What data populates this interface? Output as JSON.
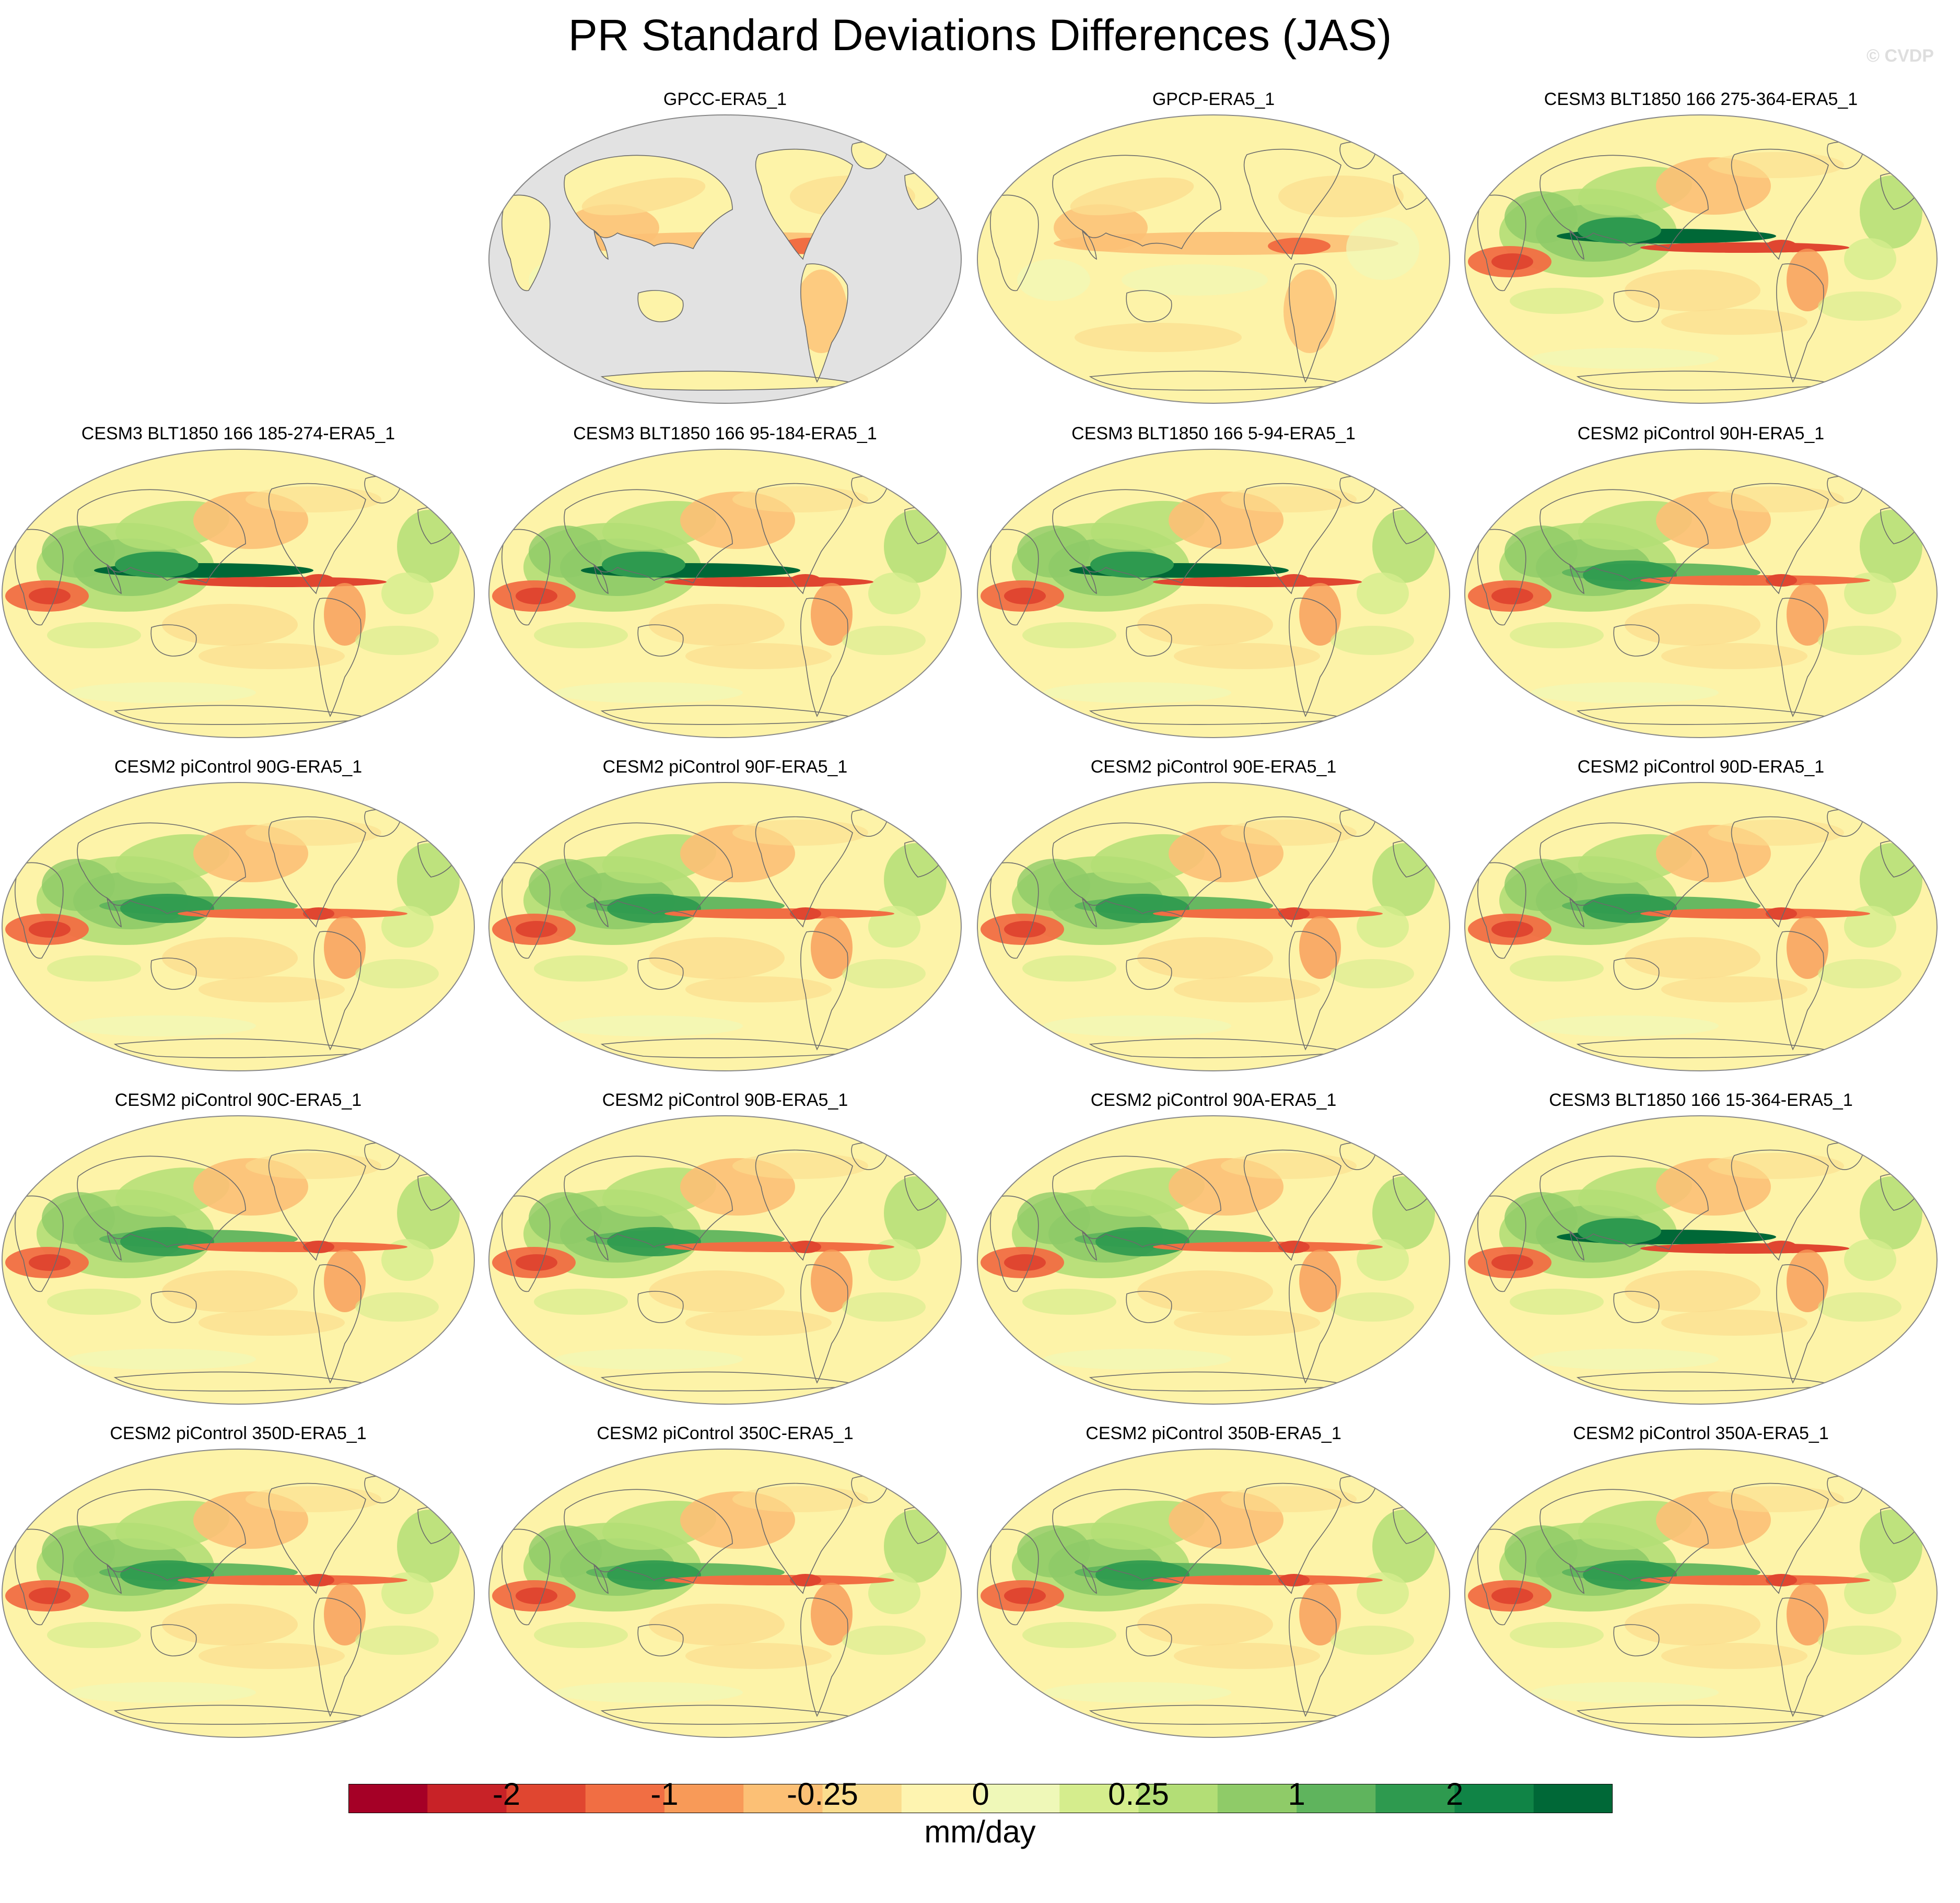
{
  "title": "PR Standard Deviations Differences (JAS)",
  "watermark": "© CVDP",
  "panels": [
    {
      "label": "GPCC-ERA5_1",
      "type": "obs-land"
    },
    {
      "label": "GPCP-ERA5_1",
      "type": "obs"
    },
    {
      "label": "CESM3 BLT1850 166 275-364-ERA5_1",
      "type": "cesm3"
    },
    {
      "label": "CESM3 BLT1850 166 185-274-ERA5_1",
      "type": "cesm3"
    },
    {
      "label": "CESM3 BLT1850 166 95-184-ERA5_1",
      "type": "cesm3"
    },
    {
      "label": "CESM3 BLT1850 166 5-94-ERA5_1",
      "type": "cesm3"
    },
    {
      "label": "CESM2 piControl 90H-ERA5_1",
      "type": "cesm2"
    },
    {
      "label": "CESM2 piControl 90G-ERA5_1",
      "type": "cesm2"
    },
    {
      "label": "CESM2 piControl 90F-ERA5_1",
      "type": "cesm2"
    },
    {
      "label": "CESM2 piControl 90E-ERA5_1",
      "type": "cesm2"
    },
    {
      "label": "CESM2 piControl 90D-ERA5_1",
      "type": "cesm2"
    },
    {
      "label": "CESM2 piControl 90C-ERA5_1",
      "type": "cesm2"
    },
    {
      "label": "CESM2 piControl 90B-ERA5_1",
      "type": "cesm2"
    },
    {
      "label": "CESM2 piControl 90A-ERA5_1",
      "type": "cesm2"
    },
    {
      "label": "CESM3 BLT1850 166 15-364-ERA5_1",
      "type": "cesm3"
    },
    {
      "label": "CESM2 piControl 350D-ERA5_1",
      "type": "cesm2"
    },
    {
      "label": "CESM2 piControl 350C-ERA5_1",
      "type": "cesm2"
    },
    {
      "label": "CESM2 piControl 350B-ERA5_1",
      "type": "cesm2"
    },
    {
      "label": "CESM2 piControl 350A-ERA5_1",
      "type": "cesm2"
    }
  ],
  "colorbar": {
    "units": "mm/day",
    "tick_labels": [
      "-2",
      "-1",
      "-0.25",
      "0",
      "0.25",
      "1",
      "2"
    ],
    "colors": [
      "#a50026",
      "#c82227",
      "#e04630",
      "#f16e43",
      "#f89a58",
      "#fcc075",
      "#fbdd8e",
      "#fef4b0",
      "#eff8b8",
      "#d5ed8d",
      "#b3de76",
      "#8fcb68",
      "#5fb45d",
      "#2e9a4f",
      "#108446",
      "#006837"
    ]
  },
  "colors": {
    "neutral": "#fdf3a8",
    "ocean_missing": "#e2e2e2",
    "coastline": "#6b6b6b"
  }
}
